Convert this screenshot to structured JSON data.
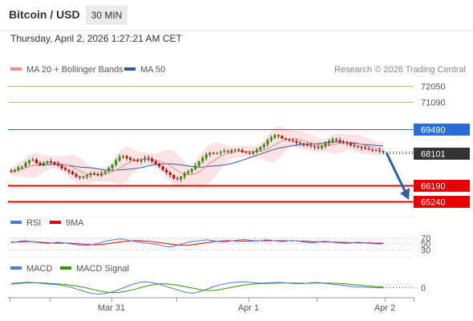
{
  "header": {
    "title": "Bitcoin / USD",
    "timeframe": "30 MIN"
  },
  "datetime": "Thursday, April 2, 2026 1:27:21 AM CET",
  "legend": {
    "main": [
      {
        "label": "MA 20 + Bollinger Bands",
        "color": "#f28b82"
      },
      {
        "label": "MA 50",
        "color": "#2c5aa0"
      }
    ],
    "rsi": [
      {
        "label": "RSI",
        "color": "#4a7cdc"
      },
      {
        "label": "9MA",
        "color": "#e60000"
      }
    ],
    "macd": [
      {
        "label": "MACD",
        "color": "#4a7cdc"
      },
      {
        "label": "MACD Signal",
        "color": "#339900"
      }
    ]
  },
  "copyright": "Research © 2026 Trading Central",
  "colors": {
    "up": "#339900",
    "down": "#e60000",
    "neutral": "#333333",
    "resistance_line": "#a8cc80",
    "pivot": "#2a6dd6",
    "support": "#e60000",
    "current": "#333333",
    "bollinger_fill": "#fde3e3",
    "ma20": "#f28b82",
    "ma50": "#2c5aa0",
    "arrow": "#2b5fa8"
  },
  "chart_data": {
    "type": "candlestick",
    "y_axis": {
      "min": 64000,
      "max": 73500
    },
    "levels": [
      {
        "value": 72050,
        "label": "72050",
        "kind": "resistance"
      },
      {
        "value": 71090,
        "label": "71090",
        "kind": "resistance"
      },
      {
        "value": 69490,
        "label": "69490",
        "kind": "pivot"
      },
      {
        "value": 68101,
        "label": "68101",
        "kind": "current"
      },
      {
        "value": 66190,
        "label": "66190",
        "kind": "support"
      },
      {
        "value": 65240,
        "label": "65240",
        "kind": "support"
      }
    ],
    "forecast_arrow": {
      "from_value": 68101,
      "to_value": 65240
    },
    "x_ticks": [
      "Mar 31",
      "Apr 1",
      "Apr 2"
    ],
    "close": [
      67000,
      67100,
      67250,
      67300,
      67500,
      67650,
      67700,
      67500,
      67400,
      67500,
      67600,
      67550,
      67450,
      67350,
      67200,
      67100,
      67000,
      66850,
      66700,
      66650,
      66700,
      66800,
      66900,
      66850,
      66800,
      66900,
      67000,
      67200,
      67400,
      67650,
      67850,
      67900,
      67800,
      67700,
      67650,
      67600,
      67700,
      67800,
      67750,
      67600,
      67450,
      67300,
      67100,
      66950,
      66800,
      66600,
      66550,
      66700,
      66900,
      67000,
      67150,
      67350,
      67600,
      67800,
      68000,
      68100,
      68050,
      68100,
      68150,
      68200,
      68150,
      68250,
      68300,
      68250,
      68150,
      68100,
      68050,
      68150,
      68300,
      68450,
      68600,
      68850,
      69000,
      69150,
      69100,
      68950,
      68900,
      68850,
      68800,
      68700,
      68650,
      68600,
      68550,
      68500,
      68450,
      68400,
      68500,
      68650,
      68800,
      68900,
      68850,
      68750,
      68700,
      68650,
      68550,
      68500,
      68450,
      68400,
      68350,
      68300,
      68250,
      68250,
      68200,
      68150
    ],
    "rsi": {
      "ticks": [
        70,
        50,
        30
      ],
      "range": [
        10,
        90
      ],
      "rsi": [
        52,
        54,
        56,
        58,
        57,
        55,
        53,
        51,
        50,
        49,
        51,
        53,
        52,
        50,
        48,
        46,
        44,
        43,
        42,
        44,
        47,
        50,
        54,
        58,
        60,
        62,
        64,
        63,
        60,
        57,
        55,
        53,
        51,
        49,
        47,
        45,
        42,
        39,
        37,
        40,
        44,
        48,
        52,
        55,
        57,
        58,
        60,
        61,
        59,
        57,
        55,
        54,
        56,
        58,
        60,
        61,
        62,
        60,
        58,
        57,
        59,
        61,
        60,
        58,
        56,
        55,
        57,
        59,
        58,
        56,
        54,
        52,
        51,
        53,
        55,
        56,
        55,
        53,
        51,
        50,
        49,
        50,
        52,
        53,
        52,
        50,
        49,
        48,
        47,
        48
      ],
      "ma9": [
        54,
        54,
        54,
        55,
        55,
        55,
        54,
        53,
        52,
        51,
        50,
        50,
        50,
        50,
        50,
        49,
        48,
        47,
        46,
        45,
        45,
        45,
        46,
        48,
        50,
        52,
        54,
        56,
        57,
        58,
        58,
        58,
        57,
        56,
        54,
        53,
        51,
        49,
        47,
        45,
        44,
        43,
        43,
        44,
        46,
        48,
        50,
        52,
        54,
        56,
        57,
        58,
        58,
        58,
        57,
        57,
        57,
        57,
        57,
        58,
        58,
        58,
        58,
        58,
        58,
        58,
        58,
        58,
        58,
        57,
        57,
        56,
        55,
        55,
        54,
        54,
        54,
        54,
        53,
        53,
        52,
        52,
        51,
        51,
        51,
        51,
        51,
        50,
        50,
        50
      ]
    },
    "macd": {
      "ticks": [
        0
      ],
      "range": [
        -350,
        350
      ],
      "macd": [
        120,
        130,
        140,
        150,
        155,
        150,
        140,
        125,
        110,
        100,
        90,
        80,
        60,
        40,
        10,
        -30,
        -70,
        -110,
        -150,
        -180,
        -200,
        -210,
        -200,
        -180,
        -150,
        -110,
        -60,
        -10,
        40,
        90,
        130,
        160,
        170,
        160,
        140,
        110,
        70,
        30,
        -10,
        -50,
        -90,
        -130,
        -160,
        -180,
        -170,
        -140,
        -100,
        -50,
        0,
        40,
        80,
        110,
        130,
        150,
        160,
        170,
        165,
        155,
        145,
        135,
        130,
        135,
        140,
        145,
        150,
        145,
        135,
        125,
        115,
        110,
        115,
        130,
        145,
        150,
        140,
        125,
        110,
        95,
        80,
        65,
        50,
        35,
        20,
        10,
        5,
        0,
        -5,
        -10,
        -15,
        -20
      ],
      "signal": [
        100,
        110,
        120,
        130,
        138,
        142,
        142,
        138,
        130,
        122,
        114,
        106,
        96,
        84,
        70,
        52,
        30,
        6,
        -20,
        -50,
        -80,
        -110,
        -135,
        -155,
        -165,
        -165,
        -155,
        -135,
        -110,
        -80,
        -45,
        -10,
        25,
        55,
        80,
        100,
        108,
        105,
        95,
        80,
        60,
        35,
        10,
        -15,
        -40,
        -65,
        -85,
        -98,
        -100,
        -90,
        -70,
        -45,
        -20,
        5,
        30,
        55,
        75,
        90,
        100,
        108,
        115,
        120,
        125,
        128,
        132,
        135,
        135,
        133,
        130,
        127,
        125,
        125,
        127,
        130,
        132,
        132,
        130,
        127,
        122,
        115,
        105,
        95,
        82,
        70,
        58,
        45,
        34,
        24,
        15,
        8
      ]
    }
  }
}
